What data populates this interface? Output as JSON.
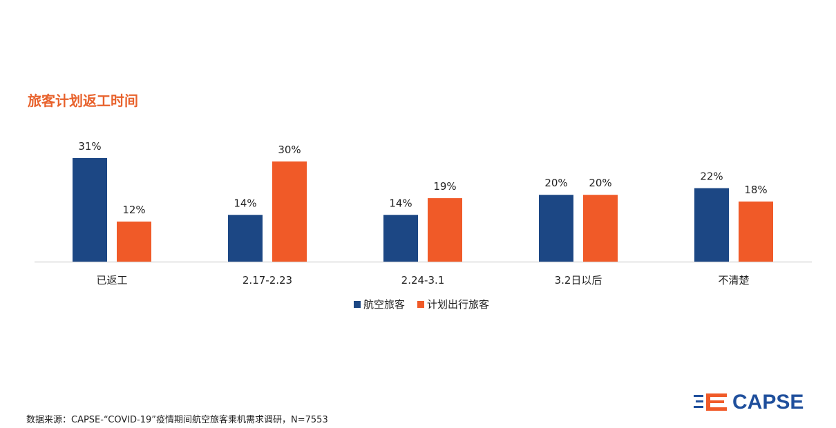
{
  "title": "旅客计划返工时间",
  "colors": {
    "series1": "#1c4784",
    "series2": "#f05a28",
    "title": "#e8622c",
    "logo": "#1f4f9c"
  },
  "chart_data": {
    "type": "bar",
    "categories": [
      "已返工",
      "2.17-2.23",
      "2.24-3.1",
      "3.2日以后",
      "不清楚"
    ],
    "series": [
      {
        "name": "航空旅客",
        "values": [
          31,
          14,
          14,
          20,
          22
        ],
        "labels": [
          "31%",
          "14%",
          "14%",
          "20%",
          "22%"
        ]
      },
      {
        "name": "计划出行旅客",
        "values": [
          12,
          30,
          19,
          20,
          18
        ],
        "labels": [
          "12%",
          "30%",
          "19%",
          "20%",
          "18%"
        ]
      }
    ],
    "ylim": [
      0,
      35
    ],
    "grid": false,
    "legend": "bottom"
  },
  "source": "数据来源：CAPSE-“COVID-19”疫情期间航空旅客乘机需求调研，N=7553",
  "logo": {
    "text": "CAPSE",
    "icon": "capse-logo-icon"
  }
}
